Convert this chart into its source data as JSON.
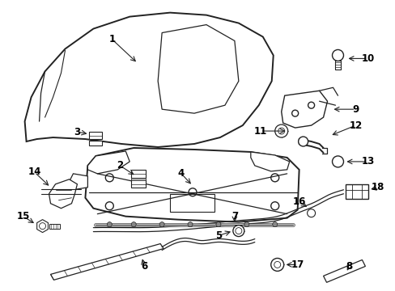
{
  "background_color": "#ffffff",
  "line_color": "#222222",
  "label_color": "#000000",
  "label_fontsize": 8.5,
  "fig_width": 4.89,
  "fig_height": 3.6,
  "dpi": 100
}
